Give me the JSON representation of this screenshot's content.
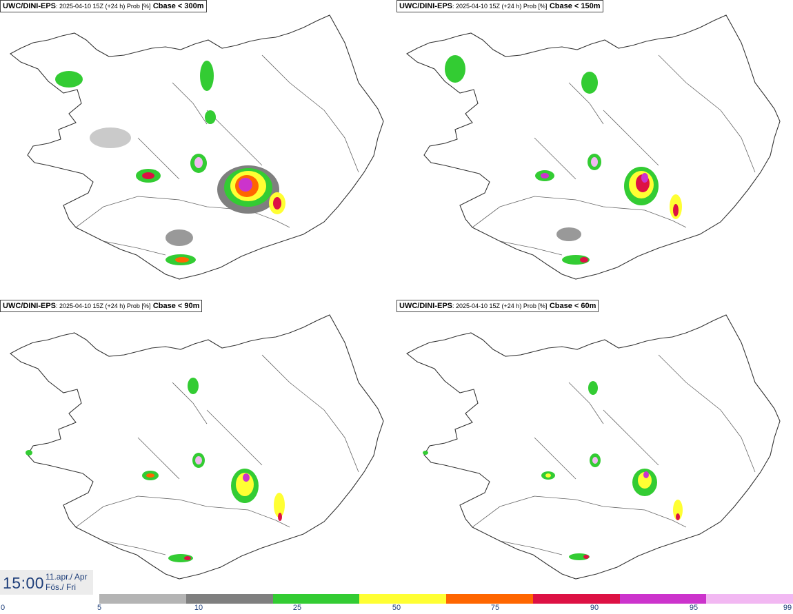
{
  "panels": [
    {
      "model": "UWC/DINI-EPS",
      "run": ": 2025-04-10 15Z (+24 h) Prob [%]",
      "threshold": "Cbase < 300m"
    },
    {
      "model": "UWC/DINI-EPS",
      "run": ": 2025-04-10 15Z (+24 h) Prob [%]",
      "threshold": "Cbase < 150m"
    },
    {
      "model": "UWC/DINI-EPS",
      "run": ": 2025-04-10 15Z (+24 h) Prob [%]",
      "threshold": "Cbase < 90m"
    },
    {
      "model": "UWC/DINI-EPS",
      "run": ": 2025-04-10 15Z (+24 h) Prob [%]",
      "threshold": "Cbase < 60m"
    }
  ],
  "valid_time": {
    "time": "15:00",
    "date_line1": "11.apr./ Apr",
    "date_line2": "Fös./ Fri"
  },
  "legend": {
    "colors": [
      "#b4b4b4",
      "#7f7f7f",
      "#33cc33",
      "#ffff33",
      "#ff6600",
      "#dd1144",
      "#cc33cc",
      "#f2b8f2"
    ],
    "ticks": [
      "0",
      "5",
      "10",
      "25",
      "50",
      "75",
      "90",
      "95",
      "99"
    ]
  }
}
